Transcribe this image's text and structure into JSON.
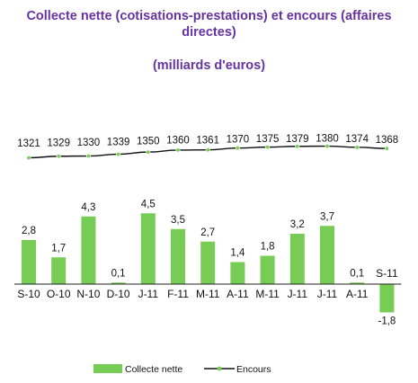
{
  "title": "Collecte nette  (cotisations-prestations) et encours (affaires\ndirectes)",
  "subtitle": "(milliards d'euros)",
  "colors": {
    "bar": "#77cc55",
    "line": "#111111",
    "marker": "#77cc55",
    "title": "#6633a0"
  },
  "chart_data": {
    "type": "bar+line",
    "title": "Collecte nette  (cotisations-prestations) et encours (affaires directes)",
    "subtitle": "(milliards d'euros)",
    "categories": [
      "S-10",
      "O-10",
      "N-10",
      "D-10",
      "J-11",
      "F-11",
      "M-11",
      "A-11",
      "M-11",
      "J-11",
      "J-11",
      "A-11",
      "S-11"
    ],
    "series": [
      {
        "name": "Collecte nette",
        "type": "bar",
        "values": [
          2.8,
          1.7,
          4.3,
          0.1,
          4.5,
          3.5,
          2.7,
          1.4,
          1.8,
          3.2,
          3.7,
          0.1,
          -1.8
        ],
        "labels": [
          "2,8",
          "1,7",
          "4,3",
          "0,1",
          "4,5",
          "3,5",
          "2,7",
          "1,4",
          "1,8",
          "3,2",
          "3,7",
          "0,1",
          "-1,8"
        ]
      },
      {
        "name": "Encours",
        "type": "line",
        "values": [
          1321,
          1329,
          1330,
          1339,
          1350,
          1360,
          1361,
          1370,
          1375,
          1379,
          1380,
          1374,
          1368
        ],
        "labels": [
          "1321",
          "1329",
          "1330",
          "1339",
          "1350",
          "1360",
          "1361",
          "1370",
          "1375",
          "1379",
          "1380",
          "1374",
          "1368"
        ]
      }
    ],
    "legend": {
      "position": "bottom",
      "entries": [
        "Collecte nette",
        "Encours"
      ]
    },
    "grid": false
  }
}
